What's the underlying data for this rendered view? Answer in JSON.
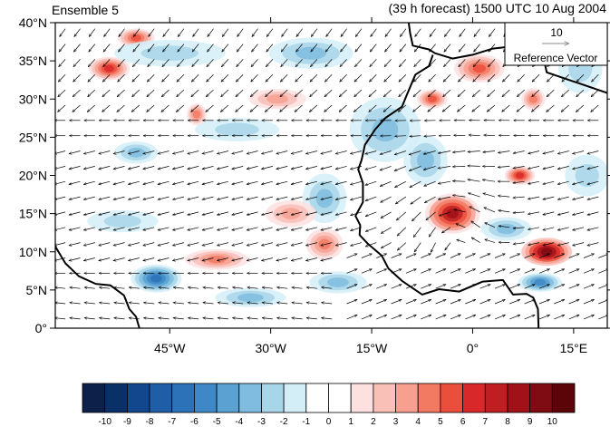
{
  "header": {
    "left_title": "Ensemble 5",
    "right_title": "(39 h forecast) 1500 UTC 10 Aug 2004"
  },
  "reference_vector": {
    "magnitude": "10",
    "label": "Reference Vector"
  },
  "map": {
    "lon_range": [
      -62,
      20
    ],
    "lat_range": [
      0,
      40
    ],
    "x_ticks": [
      {
        "value": -45,
        "label": "45°W"
      },
      {
        "value": -30,
        "label": "30°W"
      },
      {
        "value": -15,
        "label": "15°W"
      },
      {
        "value": 0,
        "label": "0°"
      },
      {
        "value": 15,
        "label": "15°E"
      }
    ],
    "y_ticks": [
      {
        "value": 0,
        "label": "0°"
      },
      {
        "value": 5,
        "label": "5°N"
      },
      {
        "value": 10,
        "label": "10°N"
      },
      {
        "value": 15,
        "label": "15°N"
      },
      {
        "value": 20,
        "label": "20°N"
      },
      {
        "value": 25,
        "label": "25°N"
      },
      {
        "value": 30,
        "label": "30°N"
      },
      {
        "value": 35,
        "label": "35°N"
      },
      {
        "value": 40,
        "label": "40°N"
      }
    ],
    "coast_africa": [
      [
        -9.5,
        40
      ],
      [
        -9.3,
        38.7
      ],
      [
        -8.9,
        37
      ],
      [
        -6.5,
        36.5
      ],
      [
        -5.6,
        36
      ],
      [
        -3,
        35.3
      ],
      [
        0,
        35.8
      ],
      [
        3,
        36.6
      ],
      [
        7,
        37
      ],
      [
        10,
        37
      ],
      [
        11,
        36.9
      ],
      [
        10.5,
        35.5
      ],
      [
        11,
        33.5
      ],
      [
        15,
        32.3
      ],
      [
        20,
        30.8
      ],
      [
        -5.9,
        35.8
      ],
      [
        -6.5,
        34.3
      ],
      [
        -8.5,
        33.2
      ],
      [
        -9.8,
        30.5
      ],
      [
        -10.5,
        29
      ],
      [
        -13,
        27.5
      ],
      [
        -14.5,
        26
      ],
      [
        -16,
        24
      ],
      [
        -16.5,
        22
      ],
      [
        -17,
        20.8
      ],
      [
        -16.3,
        19
      ],
      [
        -16.3,
        16.5
      ],
      [
        -17.4,
        14.7
      ],
      [
        -16.7,
        13.5
      ],
      [
        -16.8,
        12.2
      ],
      [
        -15.5,
        11
      ],
      [
        -13.5,
        9.5
      ],
      [
        -12.5,
        7.8
      ],
      [
        -10.5,
        6.2
      ],
      [
        -7.5,
        4.4
      ],
      [
        -5,
        5.1
      ],
      [
        -2,
        4.8
      ],
      [
        1.5,
        6.1
      ],
      [
        4.5,
        6.3
      ],
      [
        6,
        4.4
      ],
      [
        8,
        4.5
      ],
      [
        9,
        4
      ],
      [
        9.7,
        2.5
      ],
      [
        9.8,
        0
      ]
    ],
    "coast_south_america": [
      [
        -62,
        10.7
      ],
      [
        -60.5,
        8.5
      ],
      [
        -58.5,
        6.8
      ],
      [
        -56,
        5.8
      ],
      [
        -53.8,
        5.6
      ],
      [
        -51.8,
        4.3
      ],
      [
        -51,
        2.5
      ],
      [
        -50,
        1.5
      ],
      [
        -49.5,
        0
      ]
    ],
    "coast_iberia": [
      [
        -9.5,
        40
      ],
      [
        -6,
        40
      ]
    ],
    "colorbar": {
      "labels": [
        "-10",
        "-9",
        "-8",
        "-7",
        "-6",
        "-5",
        "-4",
        "-3",
        "-2",
        "-1",
        "0",
        "1",
        "2",
        "3",
        "4",
        "5",
        "6",
        "7",
        "8",
        "9",
        "10"
      ],
      "colors": [
        "#0d2049",
        "#0a3068",
        "#12478d",
        "#1f5ea7",
        "#2c72b8",
        "#3f88c7",
        "#5ba2d3",
        "#7fbcdf",
        "#a8d6e9",
        "#d4eef8",
        "#ffffff",
        "#ffffff",
        "#fde0e0",
        "#f9c0b8",
        "#f7a090",
        "#f27a63",
        "#ea4f3c",
        "#d9282a",
        "#bf1e22",
        "#a01218",
        "#7f0c12",
        "#5c0508"
      ]
    },
    "anomalies": [
      {
        "lon": -3,
        "lat": 15,
        "value": 8,
        "rx": 3.8,
        "ry": 2.4
      },
      {
        "lon": 11,
        "lat": 10,
        "value": 9,
        "rx": 3.5,
        "ry": 1.6
      },
      {
        "lon": -54,
        "lat": 34,
        "value": 6,
        "rx": 2.8,
        "ry": 1.3
      },
      {
        "lon": -50,
        "lat": 38,
        "value": 5,
        "rx": 2.5,
        "ry": 1
      },
      {
        "lon": 1,
        "lat": 34,
        "value": 5,
        "rx": 3.5,
        "ry": 1.6
      },
      {
        "lon": -6,
        "lat": 30,
        "value": 5,
        "rx": 2,
        "ry": 1
      },
      {
        "lon": 7,
        "lat": 20,
        "value": 6,
        "rx": 2,
        "ry": 1
      },
      {
        "lon": -47,
        "lat": 6.5,
        "value": -6,
        "rx": 3.5,
        "ry": 1.6
      },
      {
        "lon": 5,
        "lat": 13,
        "value": -3,
        "rx": 3.5,
        "ry": 1.3
      },
      {
        "lon": 10,
        "lat": 6,
        "value": -5,
        "rx": 3,
        "ry": 1
      },
      {
        "lon": -22,
        "lat": 17,
        "value": -3,
        "rx": 3,
        "ry": 3
      },
      {
        "lon": -13,
        "lat": 26,
        "value": -3,
        "rx": 5,
        "ry": 4
      },
      {
        "lon": -7,
        "lat": 22,
        "value": -3,
        "rx": 3,
        "ry": 3
      },
      {
        "lon": -24,
        "lat": 36,
        "value": -3,
        "rx": 6,
        "ry": 1.8
      },
      {
        "lon": -45,
        "lat": 36,
        "value": -2,
        "rx": 8,
        "ry": 1.5
      },
      {
        "lon": -35,
        "lat": 26,
        "value": -2,
        "rx": 6,
        "ry": 1.3
      },
      {
        "lon": -38,
        "lat": 9,
        "value": 4,
        "rx": 4.5,
        "ry": 1.1
      },
      {
        "lon": -22,
        "lat": 11,
        "value": 4,
        "rx": 2.5,
        "ry": 1.8
      },
      {
        "lon": -41,
        "lat": 28,
        "value": 4,
        "rx": 1.2,
        "ry": 1.2
      },
      {
        "lon": -29,
        "lat": 30,
        "value": 3,
        "rx": 4,
        "ry": 1.1
      },
      {
        "lon": 9,
        "lat": 30,
        "value": 4,
        "rx": 1.5,
        "ry": 1.2
      },
      {
        "lon": -27,
        "lat": 15,
        "value": 3,
        "rx": 3.5,
        "ry": 1.5
      },
      {
        "lon": -50,
        "lat": 23,
        "value": -3,
        "rx": 3,
        "ry": 1.2
      },
      {
        "lon": -33,
        "lat": 4,
        "value": -3,
        "rx": 5,
        "ry": 1
      },
      {
        "lon": -20,
        "lat": 6,
        "value": -3,
        "rx": 4,
        "ry": 1.2
      },
      {
        "lon": 17,
        "lat": 20,
        "value": -2,
        "rx": 3,
        "ry": 2.5
      },
      {
        "lon": 16,
        "lat": 34,
        "value": -2,
        "rx": 3,
        "ry": 3
      },
      {
        "lon": -52,
        "lat": 14,
        "value": -2,
        "rx": 5,
        "ry": 1.2
      }
    ]
  }
}
